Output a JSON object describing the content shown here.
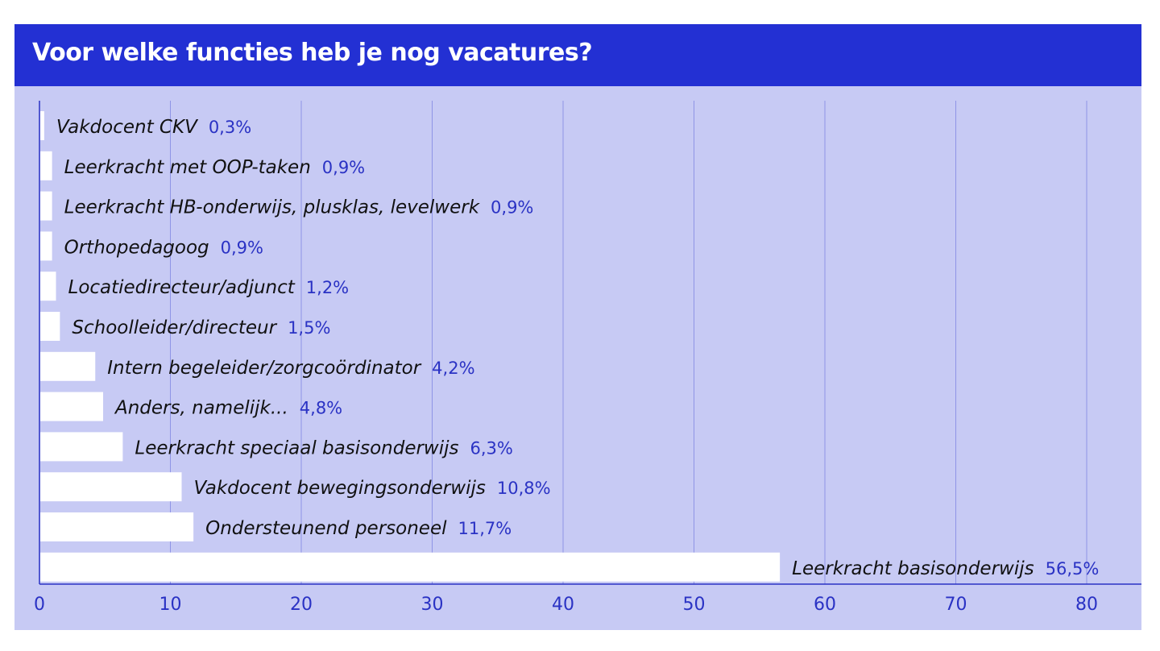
{
  "title": "Voor welke functies heb je nog vacatures?",
  "colors": {
    "header": "#2330d3",
    "panel": "#c7caf4",
    "bar": "#ffffff",
    "axis": "#2a32c4",
    "grid": "#8f94e6"
  },
  "chart_data": {
    "type": "bar",
    "orientation": "horizontal",
    "grid": true,
    "xlim": [
      0,
      84
    ],
    "ticks": [
      0,
      10,
      20,
      30,
      40,
      50,
      60,
      70,
      80
    ],
    "categories": [
      "Vakdocent CKV",
      "Leerkracht met OOP-taken",
      "Leerkracht HB-onderwijs, plusklas, levelwerk",
      "Orthopedagoog",
      "Locatiedirecteur/adjunct",
      "Schoolleider/directeur",
      "Intern begeleider/zorgcoördinator",
      "Anders, namelijk...",
      "Leerkracht speciaal basisonderwijs",
      "Vakdocent bewegingsonderwijs",
      "Ondersteunend personeel",
      "Leerkracht basisonderwijs"
    ],
    "values": [
      0.3,
      0.9,
      0.9,
      0.9,
      1.2,
      1.5,
      4.2,
      4.8,
      6.3,
      10.8,
      11.7,
      56.5
    ],
    "value_labels": [
      "0,3%",
      "0,9%",
      "0,9%",
      "0,9%",
      "1,2%",
      "1,5%",
      "4,2%",
      "4,8%",
      "6,3%",
      "10,8%",
      "11,7%",
      "56,5%"
    ]
  }
}
